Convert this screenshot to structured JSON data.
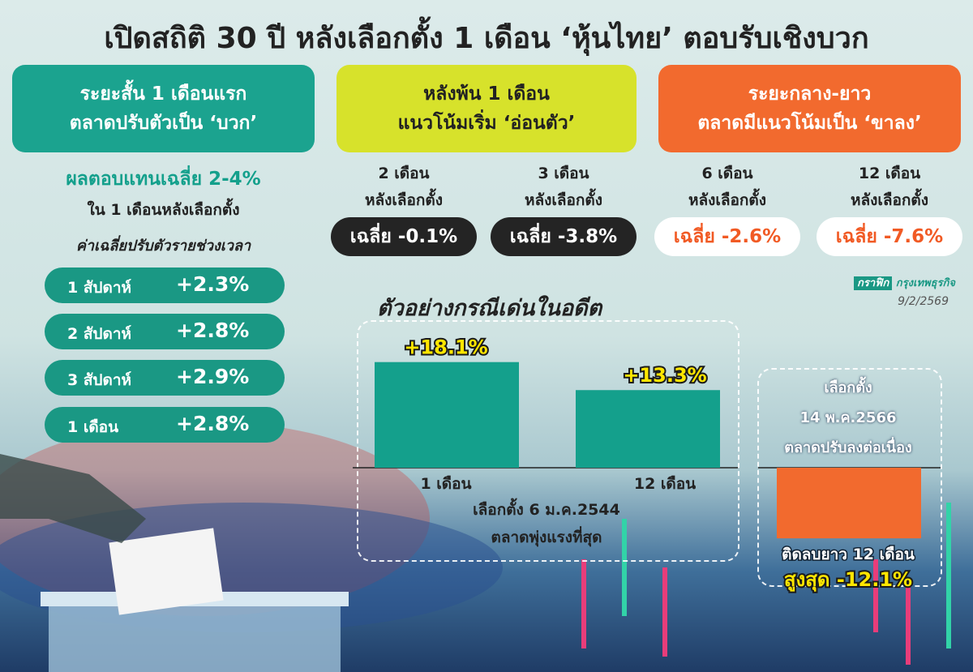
{
  "title": "เปิดสถิติ 30 ปี หลังเลือกตั้ง 1 เดือน ‘หุ้นไทย’ ตอบรับเชิงบวก",
  "panels": [
    {
      "heading": [
        "ระยะสั้น 1 เดือนแรก",
        "ตลาดปรับตัวเป็น ‘บวก’"
      ]
    },
    {
      "heading": [
        "หลังพ้น 1 เดือน",
        "แนวโน้มเริ่ม ‘อ่อนตัว’"
      ]
    },
    {
      "heading": [
        "ระยะกลาง-ยาว",
        "ตลาดมีแนวโน้มเป็น ‘ขาลง’"
      ]
    }
  ],
  "short_term": {
    "headline": "ผลตอบแทนเฉลี่ย 2-4%",
    "subline": "ใน 1 เดือนหลังเลือกตั้ง",
    "caption": "ค่าเฉลี่ยปรับตัวรายช่วงเวลา",
    "rows": [
      {
        "label": "1 สัปดาห์",
        "value": "+2.3%"
      },
      {
        "label": "2 สัปดาห์",
        "value": "+2.8%"
      },
      {
        "label": "3 สัปดาห์",
        "value": "+2.9%"
      },
      {
        "label": "1 เดือน",
        "value": "+2.8%"
      }
    ]
  },
  "averages": [
    {
      "period": [
        "2 เดือน",
        "หลังเลือกตั้ง"
      ],
      "value": "เฉลี่ย -0.1%"
    },
    {
      "period": [
        "3 เดือน",
        "หลังเลือกตั้ง"
      ],
      "value": "เฉลี่ย -3.8%"
    },
    {
      "period": [
        "6 เดือน",
        "หลังเลือกตั้ง"
      ],
      "value": "เฉลี่ย -2.6%"
    },
    {
      "period": [
        "12 เดือน",
        "หลังเลือกตั้ง"
      ],
      "value": "เฉลี่ย -7.6%"
    }
  ],
  "source": {
    "label": "กราฟิก",
    "name": "กรุงเทพธุรกิจ",
    "date": "9/2/2569"
  },
  "examples": {
    "title": "ตัวอย่างกรณีเด่นในอดีต",
    "positive": {
      "categories": [
        "1 เดือน",
        "12 เดือน"
      ],
      "values": [
        18.1,
        13.3
      ],
      "value_labels": [
        "+18.1%",
        "+13.3%"
      ],
      "caption": [
        "เลือกตั้ง 6 ม.ค.2544",
        "ตลาดพุ่งแรงที่สุด"
      ]
    },
    "negative": {
      "caption": [
        "เลือกตั้ง",
        "14 พ.ค.2566",
        "ตลาดปรับลงต่อเนื่อง"
      ],
      "note": "ติดลบยาว 12 เดือน",
      "value": -12.1,
      "value_label": "สูงสุด -12.1%"
    }
  }
}
